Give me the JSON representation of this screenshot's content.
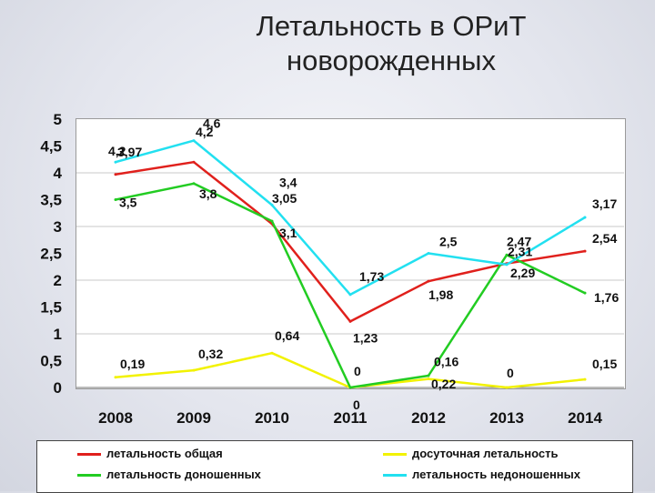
{
  "title_line1": "Летальность в ОРиТ",
  "title_line2": "новорожденных",
  "chart_data": {
    "type": "line",
    "title": "Летальность в ОРиТ новорожденных",
    "categories": [
      "2008",
      "2009",
      "2010",
      "2011",
      "2012",
      "2013",
      "2014"
    ],
    "yticks": [
      "0",
      "0,5",
      "1",
      "1,5",
      "2",
      "2,5",
      "3",
      "3,5",
      "4",
      "4,5",
      "5"
    ],
    "ylim": [
      0,
      5
    ],
    "grid": true,
    "legend": "bottom",
    "series": [
      {
        "name": "летальность общая",
        "color": "#e0201c",
        "values": [
          3.97,
          4.2,
          3.05,
          1.23,
          1.98,
          2.31,
          2.54
        ],
        "labels": [
          "3,97",
          "4,2",
          "3,05",
          "1,23",
          "1,98",
          "2,31",
          "2,54"
        ]
      },
      {
        "name": "досуточная летальность",
        "color": "#f2f200",
        "values": [
          0.19,
          0.32,
          0.64,
          0,
          0.16,
          0,
          0.15
        ],
        "labels": [
          "0,19",
          "0,32",
          "0,64",
          "0",
          "0,16",
          "0",
          "0,15"
        ]
      },
      {
        "name": "летальность доношенных",
        "color": "#22cc22",
        "values": [
          3.5,
          3.8,
          3.1,
          0,
          0.22,
          2.47,
          1.76
        ],
        "labels": [
          "3,5",
          "3,8",
          "3,1",
          "0",
          "0,22",
          "2,47",
          "1,76"
        ]
      },
      {
        "name": "летальность недоношенных",
        "color": "#22e0f0",
        "values": [
          4.2,
          4.6,
          3.4,
          1.73,
          2.5,
          2.29,
          3.17
        ],
        "labels": [
          "4,2",
          "4,6",
          "3,4",
          "1,73",
          "2,5",
          "2,29",
          "3,17"
        ]
      }
    ]
  }
}
